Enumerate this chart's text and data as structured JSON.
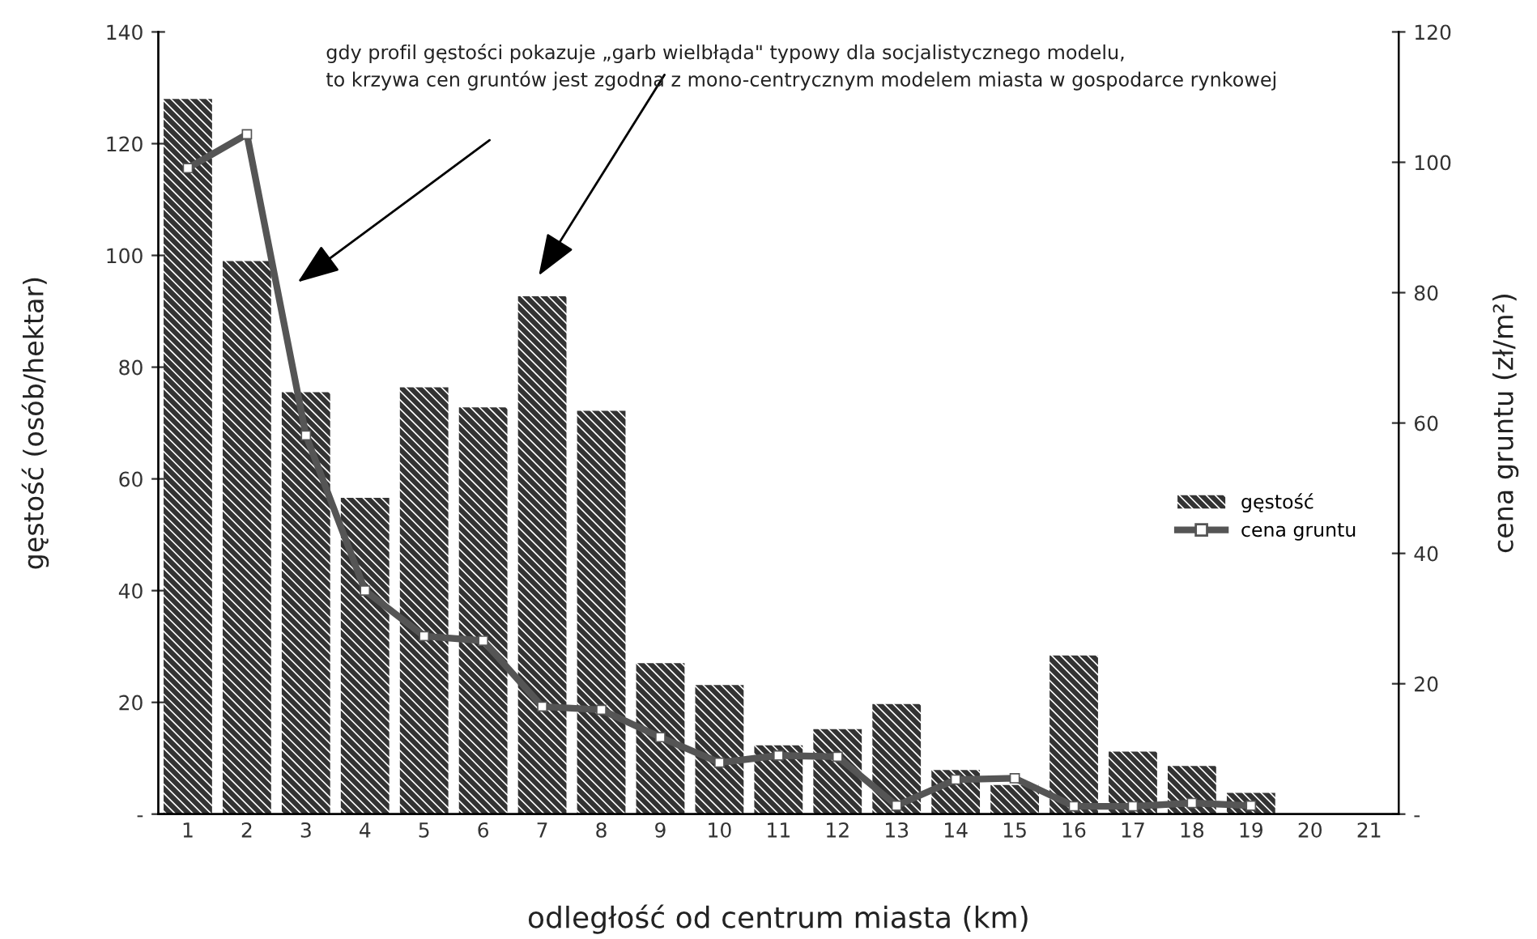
{
  "chart_data": {
    "type": "bar",
    "xlabel": "odległość od centrum miasta (km)",
    "ylabel": "gęstość (osób/hektar)",
    "y2label": "cena gruntu (zł/m²)",
    "annotations": [
      "gdy profil gęstości pokazuje „garb wielbłąda\" typowy dla socjalistycznego modelu,\nto krzywa cen gruntów jest zgodna z mono-centrycznym modelem miasta w gospodarce rynkowej"
    ],
    "categories": [
      "1",
      "2",
      "3",
      "4",
      "5",
      "6",
      "7",
      "8",
      "9",
      "10",
      "11",
      "12",
      "13",
      "14",
      "15",
      "16",
      "17",
      "18",
      "19",
      "20",
      "21"
    ],
    "series": [
      {
        "name": "gęstość",
        "color": "#333333",
        "values": [
          128,
          99,
          75.5,
          56.6,
          76.4,
          72.8,
          92.7,
          72.2,
          27,
          23.1,
          12.3,
          15.2,
          19.7,
          7.9,
          5.2,
          28.4,
          11.2,
          8.6,
          3.8,
          null,
          null
        ]
      },
      {
        "name": "cena gruntu",
        "type": "line",
        "axis": "y2",
        "color": "#555555",
        "marker": "square",
        "values": [
          99.1,
          104.3,
          58.1,
          34.3,
          27.3,
          26.6,
          16.5,
          16,
          11.8,
          7.9,
          9.0,
          8.8,
          1.3,
          5.3,
          5.5,
          1.2,
          1.2,
          1.7,
          1.3,
          null,
          null
        ]
      }
    ],
    "ylim": [
      0,
      140
    ],
    "yticks": [
      {
        "value": 0,
        "label": "-"
      },
      20,
      40,
      60,
      80,
      100,
      120,
      140
    ],
    "y2lim": [
      0,
      120
    ],
    "y2ticks": [
      {
        "value": 0,
        "label": "-"
      },
      20,
      40,
      60,
      80,
      100,
      120
    ],
    "grid": false,
    "legend": "right"
  }
}
